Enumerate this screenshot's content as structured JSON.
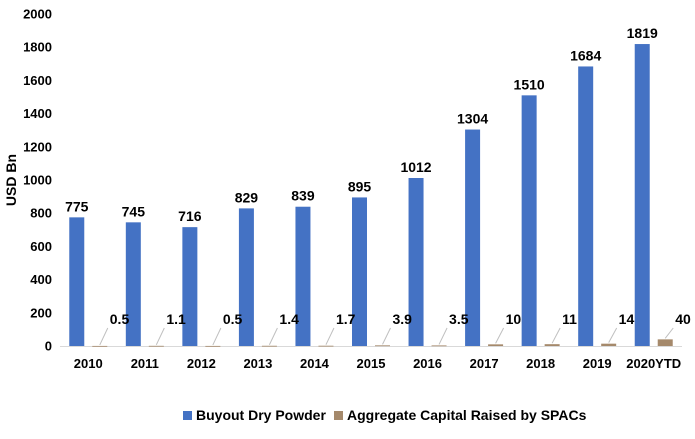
{
  "chart_data": {
    "type": "bar",
    "title": "",
    "xlabel": "",
    "ylabel": "USD Bn",
    "ylim": [
      0,
      2000
    ],
    "yticks": [
      0,
      200,
      400,
      600,
      800,
      1000,
      1200,
      1400,
      1600,
      1800,
      2000
    ],
    "grid": false,
    "legend_position": "bottom",
    "categories": [
      "2010",
      "2011",
      "2012",
      "2013",
      "2014",
      "2015",
      "2016",
      "2017",
      "2018",
      "2019",
      "2020YTD"
    ],
    "series": [
      {
        "name": "Buyout Dry Powder",
        "color": "#4472C4",
        "values": [
          775,
          745,
          716,
          829,
          839,
          895,
          1012,
          1304,
          1510,
          1684,
          1819
        ],
        "labels": [
          "775",
          "745",
          "716",
          "829",
          "839",
          "895",
          "1012",
          "1304",
          "1510",
          "1684",
          "1819"
        ]
      },
      {
        "name": "Aggregate Capital Raised by SPACs",
        "color": "#A5896B",
        "values": [
          0.5,
          1.1,
          0.5,
          1.4,
          1.7,
          3.9,
          3.5,
          10,
          11,
          14,
          40
        ],
        "labels": [
          "0.5",
          "1.1",
          "0.5",
          "1.4",
          "1.7",
          "3.9",
          "3.5",
          "10",
          "11",
          "14",
          "40"
        ]
      }
    ]
  }
}
